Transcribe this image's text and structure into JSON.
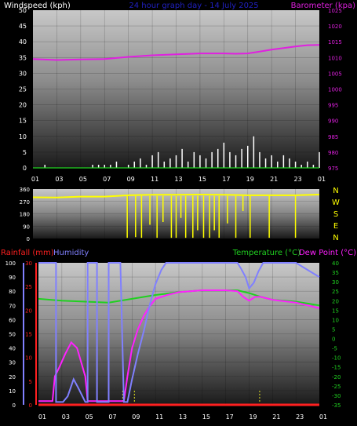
{
  "header": {
    "title": "24 hour graph day - 14 July 2025",
    "title_color": "#2020c0"
  },
  "colors": {
    "wind": "#ffffff",
    "gust": "#ffffff",
    "barometer": "#e020e0",
    "direction": "#ffff00",
    "rainfall": "#ff2020",
    "humidity": "#8080ff",
    "temperature": "#20d020",
    "dewpoint": "#ff20ff"
  },
  "chart_data": [
    {
      "type": "line",
      "title": "24 hour graph day - 14 July 2025",
      "left_label": "Windspeed (kph)",
      "right_label": "Barometer (kpa)",
      "left_ticks": [
        "0",
        "5",
        "10",
        "15",
        "20",
        "25",
        "30",
        "35",
        "40",
        "45",
        "50"
      ],
      "right_ticks": [
        "975",
        "980",
        "985",
        "990",
        "995",
        "1000",
        "1005",
        "1010",
        "1015",
        "1020",
        "1025"
      ],
      "ylim_left": [
        0,
        50
      ],
      "ylim_right": [
        975,
        1025
      ],
      "x_ticks": [
        "01",
        "03",
        "05",
        "07",
        "09",
        "11",
        "13",
        "15",
        "17",
        "19",
        "21",
        "23",
        "01"
      ],
      "series": [
        {
          "axis": "right",
          "color": "#e020e0",
          "x": [
            0,
            2,
            4,
            6,
            8,
            10,
            12,
            14,
            16,
            17,
            18,
            19,
            20,
            21,
            22,
            23,
            24
          ],
          "values": [
            1009.5,
            1009.2,
            1009.4,
            1009.5,
            1010.2,
            1010.7,
            1011.0,
            1011.3,
            1011.3,
            1011.2,
            1011.3,
            1011.9,
            1012.5,
            1013.0,
            1013.5,
            1013.9,
            1014.0
          ]
        },
        {
          "axis": "left",
          "color": "#ffffff",
          "x": [
            0,
            0.5,
            1,
            1.5,
            2,
            2.5,
            3,
            3.5,
            4,
            4.5,
            5,
            5.5,
            6,
            6.5,
            7,
            7.5,
            8,
            8.5,
            9,
            9.5,
            10,
            10.5,
            11,
            11.5,
            12,
            12.5,
            13,
            13.5,
            14,
            14.5,
            15,
            15.5,
            16,
            16.5,
            17,
            17.5,
            18,
            18.5,
            19,
            19.5,
            20,
            20.5,
            21,
            21.5,
            22,
            22.5,
            23,
            23.5,
            24
          ],
          "values": [
            0,
            0,
            1,
            0,
            0,
            0,
            0,
            0,
            0,
            0,
            1,
            1,
            1,
            1,
            2,
            0,
            1,
            2,
            3,
            1,
            4,
            5,
            2,
            3,
            4,
            6,
            2,
            5,
            4,
            3,
            5,
            6,
            8,
            5,
            4,
            6,
            7,
            10,
            5,
            3,
            4,
            2,
            4,
            3,
            2,
            1,
            2,
            1,
            5
          ]
        },
        {
          "axis": "left",
          "color": "#20d020",
          "x": [
            0,
            24
          ],
          "values": [
            0,
            0
          ]
        }
      ]
    },
    {
      "type": "scatter",
      "left_ticks": [
        "0",
        "90",
        "180",
        "270",
        "360"
      ],
      "ylim": [
        0,
        360
      ],
      "compass": [
        "N",
        "W",
        "S",
        "E",
        "N"
      ],
      "x_ticks": [],
      "color": "#ffff00",
      "baseline": {
        "x": [
          0,
          2,
          4,
          6,
          8,
          10,
          12,
          14,
          16,
          18,
          20,
          22,
          24
        ],
        "values": [
          300,
          298,
          305,
          305,
          315,
          318,
          318,
          320,
          318,
          315,
          315,
          315,
          320
        ]
      },
      "dips": [
        {
          "x": 7.9,
          "to": 5
        },
        {
          "x": 8.6,
          "to": 10
        },
        {
          "x": 9.1,
          "to": 5
        },
        {
          "x": 9.8,
          "to": 100
        },
        {
          "x": 10.4,
          "to": 5
        },
        {
          "x": 10.9,
          "to": 120
        },
        {
          "x": 11.6,
          "to": 5
        },
        {
          "x": 12.0,
          "to": 5
        },
        {
          "x": 12.4,
          "to": 150
        },
        {
          "x": 12.8,
          "to": 5
        },
        {
          "x": 13.4,
          "to": 5
        },
        {
          "x": 13.8,
          "to": 60
        },
        {
          "x": 14.3,
          "to": 5
        },
        {
          "x": 14.8,
          "to": 5
        },
        {
          "x": 15.2,
          "to": 60
        },
        {
          "x": 15.6,
          "to": 5
        },
        {
          "x": 16.3,
          "to": 110
        },
        {
          "x": 17.0,
          "to": 5
        },
        {
          "x": 17.6,
          "to": 200
        },
        {
          "x": 18.2,
          "to": 5
        },
        {
          "x": 19.8,
          "to": 5
        },
        {
          "x": 22.0,
          "to": 5
        }
      ]
    },
    {
      "type": "line",
      "left_label_parts": [
        "Rainfall (mm)",
        "Humidity"
      ],
      "right_label_parts": [
        "Temperature (°C)",
        "Dew Point (°C)"
      ],
      "rain_ticks": [
        "0",
        "5",
        "10",
        "15",
        "20",
        "25",
        "30"
      ],
      "humidity_ticks": [
        "0",
        "10",
        "20",
        "30",
        "40",
        "50",
        "60",
        "70",
        "80",
        "90",
        "100"
      ],
      "temp_ticks": [
        "-35",
        "-30",
        "-25",
        "-20",
        "-15",
        "-10",
        "-5",
        "0",
        "5",
        "10",
        "15",
        "20",
        "25",
        "30",
        "35",
        "40"
      ],
      "ylim_humidity": [
        0,
        100
      ],
      "ylim_temp": [
        -35,
        40
      ],
      "x_ticks": [
        "01",
        "03",
        "05",
        "07",
        "09",
        "11",
        "13",
        "15",
        "17",
        "19",
        "21",
        "23",
        "01"
      ],
      "series": [
        {
          "name": "Humidity",
          "axis": "humidity",
          "color": "#8080ff",
          "x": [
            0,
            1.5,
            1.5,
            2.1,
            2.5,
            3.0,
            3.4,
            4.0,
            4.2,
            4.2,
            5.0,
            5.0,
            6.0,
            6.0,
            7.0,
            7.3,
            7.6,
            8.0,
            8.5,
            9.0,
            9.5,
            10.0,
            10.5,
            10.9,
            11.5,
            12,
            16,
            17,
            17.3,
            17.7,
            18.0,
            18.4,
            18.8,
            19.2,
            20,
            22,
            24
          ],
          "values": [
            100,
            100,
            2,
            2,
            6,
            18,
            12,
            2,
            2,
            100,
            100,
            2,
            2,
            100,
            100,
            2,
            2,
            18,
            36,
            52,
            70,
            85,
            95,
            100,
            100,
            100,
            100,
            100,
            96,
            90,
            82,
            86,
            94,
            100,
            100,
            100,
            90
          ]
        },
        {
          "name": "Temperature",
          "axis": "temp",
          "color": "#20d020",
          "x": [
            0,
            2,
            4,
            6,
            8,
            10,
            12,
            14,
            16,
            17,
            18,
            19,
            20,
            21,
            22,
            23,
            24
          ],
          "values": [
            21,
            20,
            19.5,
            19,
            21,
            23,
            24.5,
            25.5,
            25.5,
            25.5,
            24,
            22,
            20.5,
            20,
            19.5,
            18.5,
            17.5
          ]
        },
        {
          "name": "Dew Point",
          "axis": "temp",
          "color": "#ff20ff",
          "x": [
            0,
            1.2,
            1.4,
            1.8,
            2.3,
            2.8,
            3.3,
            4.0,
            4.2,
            5.0,
            5.0,
            6.0,
            6.0,
            7.0,
            7.3,
            7.6,
            8.0,
            8.5,
            9.0,
            9.5,
            10.0,
            11,
            12,
            14,
            16,
            17,
            17.5,
            18,
            18.5,
            19,
            20,
            22,
            24
          ],
          "values": [
            -33,
            -33,
            -20,
            -15,
            -8,
            -2,
            -5,
            -20,
            -33,
            -33,
            -33,
            -33,
            -33,
            -33,
            -33,
            -20,
            -5,
            5,
            12,
            17,
            21,
            23,
            24.5,
            25.5,
            25.5,
            25,
            22,
            20,
            22,
            22,
            20.5,
            19,
            16
          ]
        }
      ],
      "rain": {
        "color": "#ff2020",
        "x": [
          0,
          24
        ],
        "values": [
          0,
          0
        ]
      }
    }
  ]
}
